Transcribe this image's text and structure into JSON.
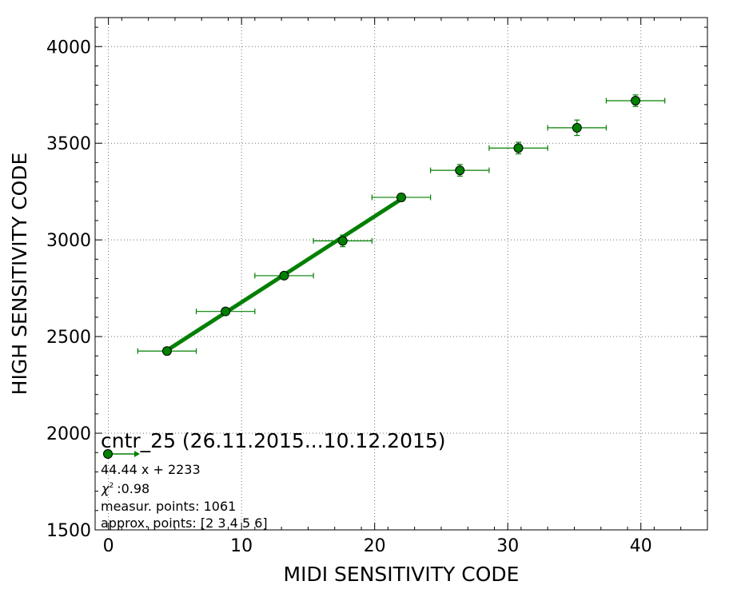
{
  "chart_data": {
    "type": "scatter",
    "title": "",
    "xlabel": "MIDI SENSITIVITY CODE",
    "ylabel": "HIGH SENSITIVITY CODE",
    "xlim": [
      -1,
      45
    ],
    "ylim": [
      1500,
      4150
    ],
    "x_ticks": [
      0,
      10,
      20,
      30,
      40
    ],
    "y_ticks": [
      1500,
      2000,
      2500,
      3000,
      3500,
      4000
    ],
    "grid": true,
    "colors": {
      "series": "#008000",
      "marker_fill": "#008000",
      "marker_edge": "#000000"
    },
    "series": [
      {
        "points": [
          {
            "x": 4.4,
            "y": 2425,
            "xerr": 2.2,
            "yerr": 10
          },
          {
            "x": 8.8,
            "y": 2630,
            "xerr": 2.2,
            "yerr": 15
          },
          {
            "x": 13.2,
            "y": 2815,
            "xerr": 2.2,
            "yerr": 15
          },
          {
            "x": 17.6,
            "y": 2995,
            "xerr": 2.2,
            "yerr": 30
          },
          {
            "x": 22.0,
            "y": 3220,
            "xerr": 2.2,
            "yerr": 20
          },
          {
            "x": 26.4,
            "y": 3360,
            "xerr": 2.2,
            "yerr": 30
          },
          {
            "x": 30.8,
            "y": 3475,
            "xerr": 2.2,
            "yerr": 30
          },
          {
            "x": 35.2,
            "y": 3580,
            "xerr": 2.2,
            "yerr": 40
          },
          {
            "x": 39.6,
            "y": 3720,
            "xerr": 2.2,
            "yerr": 30
          }
        ]
      }
    ],
    "fit": {
      "slope": 44.44,
      "intercept": 2233,
      "x_range": [
        4.4,
        22.0
      ]
    },
    "legend": {
      "placement": "bottom-left",
      "title": "cntr_25 (26.11.2015...10.12.2015)",
      "lines": [
        "44.44 x + 2233",
        ":0.98",
        "measur. points: 1061",
        "approx. points: [2 3 4 5 6]"
      ],
      "chi_symbol": "χ",
      "chi_superscript": "2"
    }
  }
}
